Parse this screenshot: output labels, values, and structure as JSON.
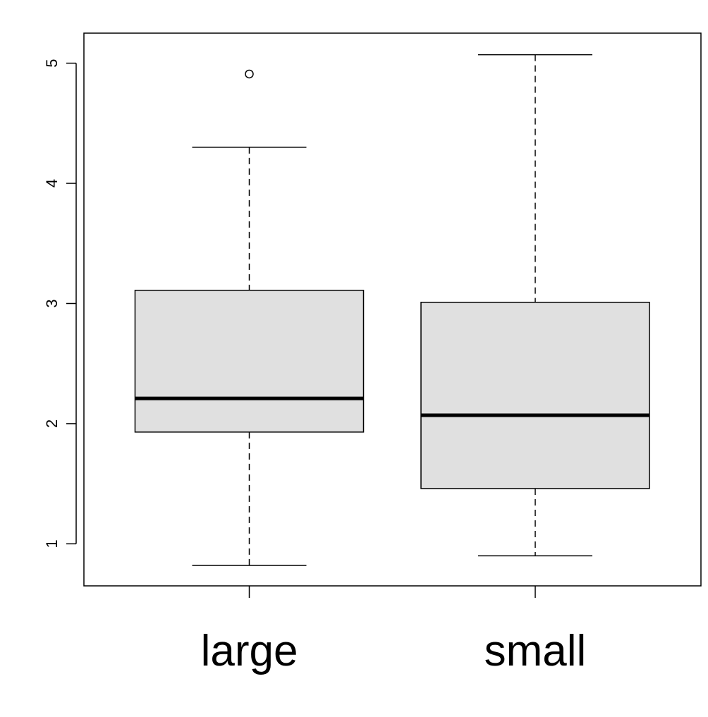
{
  "chart_data": {
    "type": "boxplot",
    "title": "",
    "xlabel": "",
    "ylabel": "",
    "ylim": [
      0.65,
      5.25
    ],
    "yticks": [
      1,
      2,
      3,
      4,
      5
    ],
    "ytick_labels": [
      "1",
      "2",
      "3",
      "4",
      "5"
    ],
    "categories": [
      "large",
      "small"
    ],
    "grid": false,
    "legend": "none",
    "box_fill": "#e0e0e0",
    "line_color": "#000000",
    "boxes": [
      {
        "category": "large",
        "whisker_low": 0.82,
        "q1": 1.93,
        "median": 2.21,
        "q3": 3.11,
        "whisker_high": 4.3,
        "outliers": [
          4.91
        ]
      },
      {
        "category": "small",
        "whisker_low": 0.9,
        "q1": 1.46,
        "median": 2.07,
        "q3": 3.01,
        "whisker_high": 5.07,
        "outliers": []
      }
    ]
  }
}
